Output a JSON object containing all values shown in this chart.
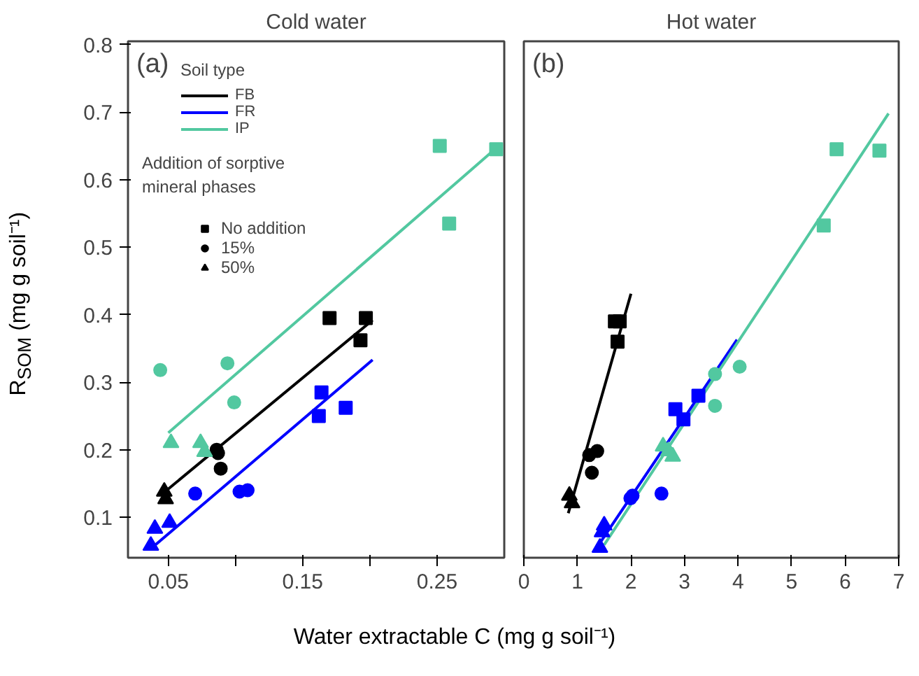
{
  "chart_data": [
    {
      "type": "scatter",
      "title": "Cold water",
      "xlabel": "Water extractable C (mg g soil⁻¹)",
      "ylabel": "R$_{SOM}$ (mg g soil⁻¹)",
      "legend_title": "Soil type",
      "annotations": [
        "(a)",
        "Addition of sorptive mineral phases"
      ],
      "xlim": [
        0.02,
        0.3
      ],
      "xticks": [
        0.05,
        {
          "value": 0.1,
          "label": null
        },
        0.15,
        {
          "value": 0.2,
          "label": null
        },
        0.25
      ],
      "ylim": [
        0.04,
        0.805
      ],
      "yticks": [
        0.1,
        0.2,
        0.3,
        0.4,
        0.5,
        0.6,
        0.7,
        0.8
      ],
      "grid": false,
      "legend": "top left",
      "series": [
        {
          "type": "line",
          "name": "FB",
          "color": "#000000",
          "x": [
            0.047,
            0.202
          ],
          "values": [
            0.137,
            0.392
          ]
        },
        {
          "type": "line",
          "name": "FR",
          "color": "#0000ff",
          "x": [
            0.038,
            0.202
          ],
          "values": [
            0.055,
            0.333
          ]
        },
        {
          "type": "line",
          "name": "IP",
          "color": "#52c8a0",
          "x": [
            0.05,
            0.293
          ],
          "values": [
            0.225,
            0.645
          ]
        },
        {
          "name": "No addition",
          "marker": "square",
          "color": "#000000",
          "x": [
            0.17,
            0.197,
            0.193,
            0.164,
            0.162,
            0.182,
            0.252,
            0.294,
            0.259
          ],
          "values": [
            0.395,
            0.395,
            0.362,
            0.285,
            0.25,
            0.262,
            0.65,
            0.645,
            0.535
          ],
          "colors": [
            "#000000",
            "#000000",
            "#000000",
            "#0000ff",
            "#0000ff",
            "#0000ff",
            "#52c8a0",
            "#52c8a0",
            "#52c8a0"
          ]
        },
        {
          "name": "15%",
          "marker": "circle",
          "color": "#000000",
          "x": [
            0.086,
            0.087,
            0.089,
            0.07,
            0.103,
            0.109,
            0.044,
            0.094,
            0.099
          ],
          "values": [
            0.2,
            0.195,
            0.172,
            0.135,
            0.138,
            0.14,
            0.318,
            0.328,
            0.27
          ],
          "colors": [
            "#000000",
            "#000000",
            "#000000",
            "#0000ff",
            "#0000ff",
            "#0000ff",
            "#52c8a0",
            "#52c8a0",
            "#52c8a0"
          ]
        },
        {
          "name": "50%",
          "marker": "triangle",
          "color": "#000000",
          "x": [
            0.047,
            0.048,
            0.04,
            0.051,
            0.037,
            0.052,
            0.074,
            0.077
          ],
          "values": [
            0.138,
            0.127,
            0.083,
            0.092,
            0.058,
            0.21,
            0.21,
            0.197
          ],
          "colors": [
            "#000000",
            "#000000",
            "#0000ff",
            "#0000ff",
            "#0000ff",
            "#52c8a0",
            "#52c8a0",
            "#52c8a0"
          ]
        }
      ]
    },
    {
      "type": "scatter",
      "title": "Hot water",
      "annotations": [
        "(b)"
      ],
      "xlim": [
        0,
        7
      ],
      "xticks": [
        0,
        1,
        2,
        3,
        4,
        5,
        6,
        7
      ],
      "ylim": [
        0.04,
        0.805
      ],
      "yticks": [
        0.1,
        0.2,
        0.3,
        0.4,
        0.5,
        0.6,
        0.7,
        0.8
      ],
      "grid": false,
      "tick_labels": "x",
      "series": [
        {
          "type": "line",
          "color": "#000000",
          "x": [
            0.83,
            2.0
          ],
          "values": [
            0.106,
            0.431
          ]
        },
        {
          "type": "line",
          "color": "#0000ff",
          "x": [
            1.37,
            3.98
          ],
          "values": [
            0.056,
            0.363
          ]
        },
        {
          "type": "line",
          "color": "#52c8a0",
          "x": [
            1.5,
            6.81
          ],
          "values": [
            0.059,
            0.698
          ]
        },
        {
          "marker": "square",
          "x": [
            1.7,
            1.79,
            1.75,
            2.83,
            3.26,
            2.98,
            5.84,
            6.64,
            5.6
          ],
          "values": [
            0.39,
            0.39,
            0.36,
            0.26,
            0.28,
            0.245,
            0.645,
            0.643,
            0.532
          ],
          "colors": [
            "#000000",
            "#000000",
            "#000000",
            "#0000ff",
            "#0000ff",
            "#0000ff",
            "#52c8a0",
            "#52c8a0",
            "#52c8a0"
          ]
        },
        {
          "marker": "circle",
          "x": [
            1.22,
            1.37,
            1.27,
            2.03,
            2.57,
            1.99,
            3.57,
            4.03,
            3.57
          ],
          "values": [
            0.192,
            0.198,
            0.166,
            0.132,
            0.135,
            0.128,
            0.312,
            0.323,
            0.265
          ],
          "colors": [
            "#000000",
            "#000000",
            "#000000",
            "#0000ff",
            "#0000ff",
            "#0000ff",
            "#52c8a0",
            "#52c8a0",
            "#52c8a0"
          ]
        },
        {
          "marker": "triangle",
          "x": [
            0.85,
            0.9,
            1.5,
            1.46,
            1.42,
            2.6,
            2.78,
            2.7
          ],
          "values": [
            0.132,
            0.121,
            0.088,
            0.078,
            0.055,
            0.205,
            0.19,
            0.198
          ],
          "colors": [
            "#000000",
            "#000000",
            "#0000ff",
            "#0000ff",
            "#0000ff",
            "#52c8a0",
            "#52c8a0",
            "#52c8a0"
          ]
        }
      ]
    }
  ]
}
